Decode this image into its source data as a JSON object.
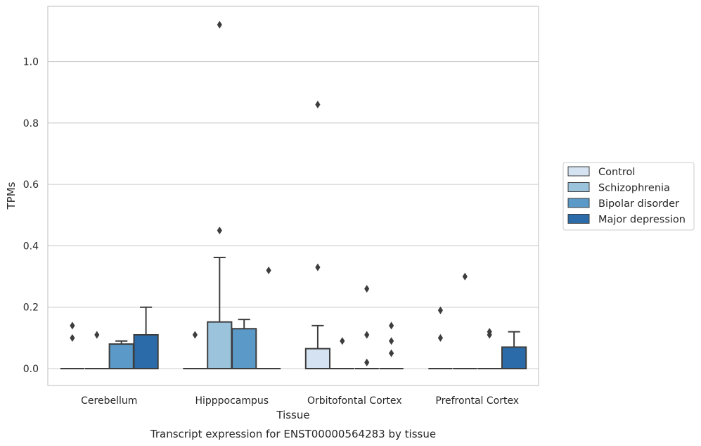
{
  "chart_data": {
    "type": "box",
    "caption": "Transcript expression for ENST00000564283 by tissue",
    "xlabel": "Tissue",
    "ylabel": "TPMs",
    "ylim": [
      -0.055,
      1.18
    ],
    "yticks": [
      "0.0",
      "0.2",
      "0.4",
      "0.6",
      "0.8",
      "1.0"
    ],
    "ytick_values": [
      0.0,
      0.2,
      0.4,
      0.6,
      0.8,
      1.0
    ],
    "grid": "horizontal",
    "legend_position": "right",
    "categories": [
      "Cerebellum",
      "Hipppocampus",
      "Orbitofontal Cortex",
      "Prefrontal Cortex"
    ],
    "series": [
      {
        "name": "Control",
        "color": "#d4e2f1",
        "boxes": [
          {
            "q1": 0.0,
            "median": 0.0,
            "q3": 0.0,
            "whislo": 0.0,
            "whishi": 0.0,
            "fliers": [
              0.14,
              0.1
            ]
          },
          {
            "q1": 0.0,
            "median": 0.0,
            "q3": 0.0,
            "whislo": 0.0,
            "whishi": 0.0,
            "fliers": [
              0.11
            ]
          },
          {
            "q1": 0.0,
            "median": 0.0,
            "q3": 0.065,
            "whislo": 0.0,
            "whishi": 0.14,
            "fliers": [
              0.86,
              0.33
            ]
          },
          {
            "q1": 0.0,
            "median": 0.0,
            "q3": 0.0,
            "whislo": 0.0,
            "whishi": 0.0,
            "fliers": [
              0.19,
              0.1
            ]
          }
        ]
      },
      {
        "name": "Schizophrenia",
        "color": "#9bc4dc",
        "boxes": [
          {
            "q1": 0.0,
            "median": 0.0,
            "q3": 0.0,
            "whislo": 0.0,
            "whishi": 0.0,
            "fliers": [
              0.11
            ]
          },
          {
            "q1": 0.0,
            "median": 0.0,
            "q3": 0.152,
            "whislo": 0.0,
            "whishi": 0.362,
            "fliers": [
              1.12,
              0.45
            ]
          },
          {
            "q1": 0.0,
            "median": 0.0,
            "q3": 0.0,
            "whislo": 0.0,
            "whishi": 0.0,
            "fliers": [
              0.09
            ]
          },
          {
            "q1": 0.0,
            "median": 0.0,
            "q3": 0.0,
            "whislo": 0.0,
            "whishi": 0.0,
            "fliers": [
              0.3
            ]
          }
        ]
      },
      {
        "name": "Bipolar disorder",
        "color": "#5b9ac8",
        "boxes": [
          {
            "q1": 0.0,
            "median": 0.0,
            "q3": 0.08,
            "whislo": 0.0,
            "whishi": 0.09,
            "fliers": []
          },
          {
            "q1": 0.0,
            "median": 0.0,
            "q3": 0.13,
            "whislo": 0.0,
            "whishi": 0.16,
            "fliers": []
          },
          {
            "q1": 0.0,
            "median": 0.0,
            "q3": 0.0,
            "whislo": 0.0,
            "whishi": 0.0,
            "fliers": [
              0.26,
              0.11,
              0.02
            ]
          },
          {
            "q1": 0.0,
            "median": 0.0,
            "q3": 0.0,
            "whislo": 0.0,
            "whishi": 0.0,
            "fliers": [
              0.12,
              0.11
            ]
          }
        ]
      },
      {
        "name": "Major depression",
        "color": "#2c6ba9",
        "boxes": [
          {
            "q1": 0.0,
            "median": 0.0,
            "q3": 0.11,
            "whislo": 0.0,
            "whishi": 0.2,
            "fliers": []
          },
          {
            "q1": 0.0,
            "median": 0.0,
            "q3": 0.0,
            "whislo": 0.0,
            "whishi": 0.0,
            "fliers": [
              0.32
            ]
          },
          {
            "q1": 0.0,
            "median": 0.0,
            "q3": 0.0,
            "whislo": 0.0,
            "whishi": 0.0,
            "fliers": [
              0.14,
              0.09,
              0.05
            ]
          },
          {
            "q1": 0.0,
            "median": 0.0,
            "q3": 0.07,
            "whislo": 0.0,
            "whishi": 0.12,
            "fliers": []
          }
        ]
      }
    ]
  }
}
